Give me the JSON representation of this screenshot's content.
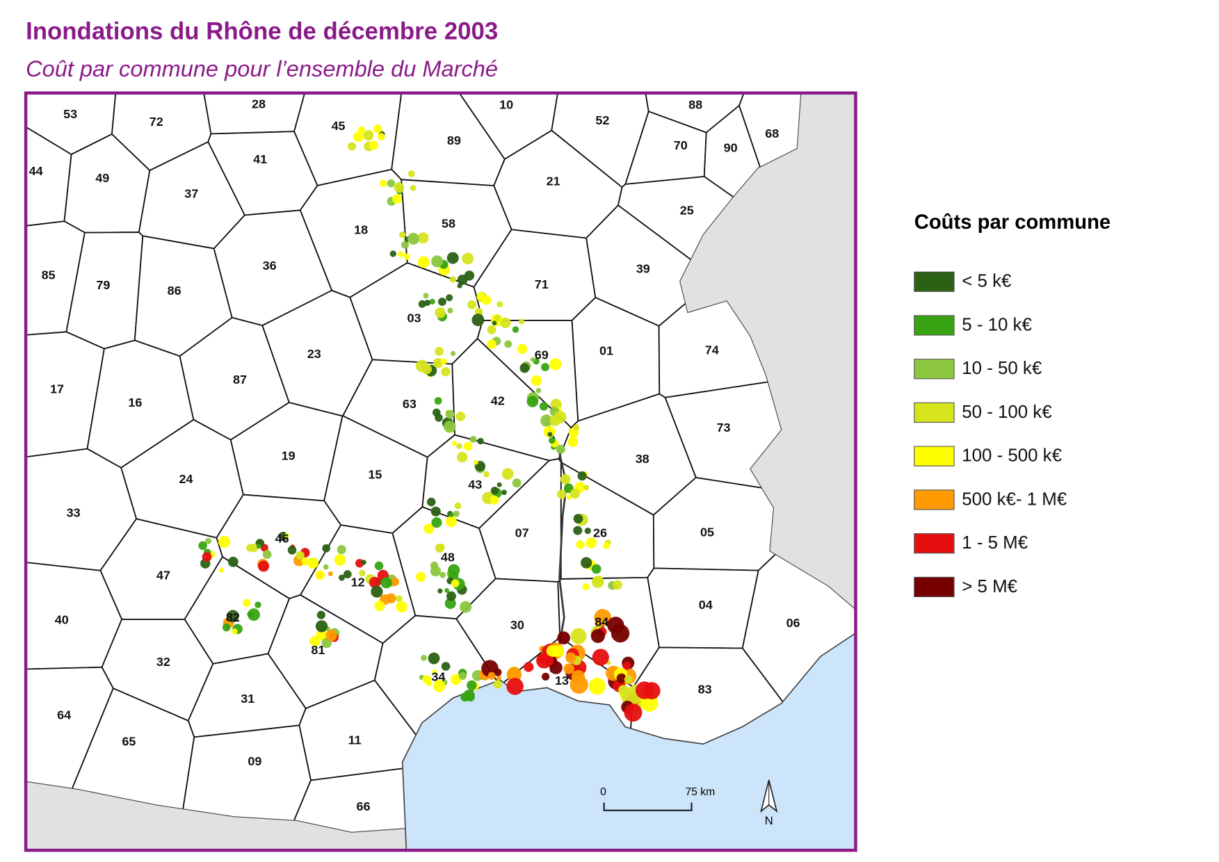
{
  "header": {
    "title": "Inondations du Rhône de décembre 2003",
    "subtitle": "Coût par commune pour l’ensemble du Marché"
  },
  "map": {
    "departments": [
      "53",
      "72",
      "28",
      "45",
      "10",
      "52",
      "88",
      "68",
      "70",
      "90",
      "89",
      "41",
      "44",
      "49",
      "37",
      "21",
      "25",
      "18",
      "58",
      "85",
      "79",
      "86",
      "36",
      "39",
      "71",
      "03",
      "01",
      "74",
      "23",
      "69",
      "17",
      "16",
      "87",
      "63",
      "42",
      "73",
      "19",
      "24",
      "38",
      "15",
      "43",
      "33",
      "07",
      "26",
      "05",
      "46",
      "48",
      "47",
      "12",
      "04",
      "40",
      "30",
      "84",
      "06",
      "82",
      "81",
      "32",
      "34",
      "13",
      "83",
      "31",
      "64",
      "65",
      "11",
      "09",
      "66"
    ],
    "scale": {
      "start": "0",
      "end": "75 km"
    },
    "north": "N"
  },
  "legend": {
    "title": "Coûts par commune",
    "items": [
      {
        "label": "< 5 k€",
        "color": "#2b6114"
      },
      {
        "label": "5 - 10 k€",
        "color": "#38a312"
      },
      {
        "label": "10 - 50 k€",
        "color": "#8dc63f"
      },
      {
        "label": "50 - 100 k€",
        "color": "#d6e41c"
      },
      {
        "label": "100 - 500 k€",
        "color": "#ffff00"
      },
      {
        "label": "500 k€- 1 M€",
        "color": "#ff9a00"
      },
      {
        "label": "1 - 5 M€",
        "color": "#e60f0f"
      },
      {
        "label": "> 5 M€",
        "color": "#760000"
      }
    ]
  }
}
